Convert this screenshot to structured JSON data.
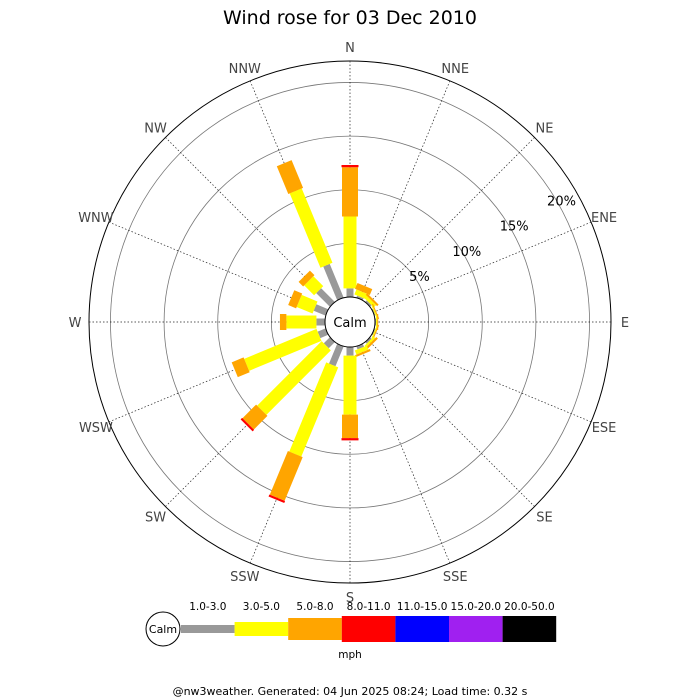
{
  "chart_data": {
    "type": "windrose",
    "title": "Wind rose for 03 Dec 2010",
    "directions": [
      "N",
      "NNE",
      "NE",
      "ENE",
      "E",
      "ESE",
      "SE",
      "SSE",
      "S",
      "SSW",
      "SW",
      "WSW",
      "W",
      "WNW",
      "NW",
      "NNW"
    ],
    "radial_ticks": [
      5,
      10,
      15,
      20
    ],
    "radial_tick_labels": [
      "5%",
      "10%",
      "15%",
      "20%"
    ],
    "rmax": 22,
    "calm_label": "Calm",
    "bins": [
      {
        "label": "1.0-3.0",
        "color": "#999999"
      },
      {
        "label": "3.0-5.0",
        "color": "#ffff00"
      },
      {
        "label": "5.0-8.0",
        "color": "#ffa500"
      },
      {
        "label": "8.0-11.0",
        "color": "#ff0000"
      },
      {
        "label": "11.0-15.0",
        "color": "#0000ff"
      },
      {
        "label": "15.0-20.0",
        "color": "#a020f0"
      },
      {
        "label": "20.0-50.0",
        "color": "#000000"
      }
    ],
    "unit": "mph",
    "series": [
      {
        "direction": "N",
        "values": [
          0.8,
          6.7,
          4.6,
          0.2,
          0,
          0,
          0
        ]
      },
      {
        "direction": "NNE",
        "values": [
          0.2,
          0.5,
          0.6,
          0,
          0,
          0,
          0
        ]
      },
      {
        "direction": "NE",
        "values": [
          0.2,
          0.3,
          0.2,
          0,
          0,
          0,
          0
        ]
      },
      {
        "direction": "ENE",
        "values": [
          0.1,
          0.1,
          0.1,
          0,
          0,
          0,
          0
        ]
      },
      {
        "direction": "E",
        "values": [
          0.1,
          0.1,
          0.1,
          0,
          0,
          0,
          0
        ]
      },
      {
        "direction": "ESE",
        "values": [
          0.1,
          0.1,
          0.1,
          0,
          0,
          0,
          0
        ]
      },
      {
        "direction": "SE",
        "values": [
          0.2,
          0.2,
          0.2,
          0,
          0,
          0,
          0
        ]
      },
      {
        "direction": "SSE",
        "values": [
          0.3,
          0.4,
          0.2,
          0,
          0,
          0,
          0
        ]
      },
      {
        "direction": "S",
        "values": [
          0.8,
          5.5,
          2.2,
          0.2,
          0,
          0,
          0
        ]
      },
      {
        "direction": "SSW",
        "values": [
          2.0,
          9.0,
          4.4,
          0.2,
          0,
          0,
          0
        ]
      },
      {
        "direction": "SW",
        "values": [
          0.8,
          8.5,
          1.8,
          0.2,
          0,
          0,
          0
        ]
      },
      {
        "direction": "WSW",
        "values": [
          0.8,
          7.3,
          1.2,
          0,
          0,
          0,
          0
        ]
      },
      {
        "direction": "W",
        "values": [
          0.8,
          2.8,
          0.6,
          0,
          0,
          0,
          0
        ]
      },
      {
        "direction": "WNW",
        "values": [
          1.2,
          1.6,
          0.8,
          0,
          0,
          0,
          0
        ]
      },
      {
        "direction": "NW",
        "values": [
          1.8,
          1.3,
          0.6,
          0,
          0,
          0,
          0
        ]
      },
      {
        "direction": "NNW",
        "values": [
          3.4,
          7.5,
          2.8,
          0,
          0,
          0,
          0
        ]
      }
    ]
  },
  "footer": {
    "text": "@nw3weather. Generated: 04 Jun 2025 08:24; Load time: 0.32 s"
  }
}
